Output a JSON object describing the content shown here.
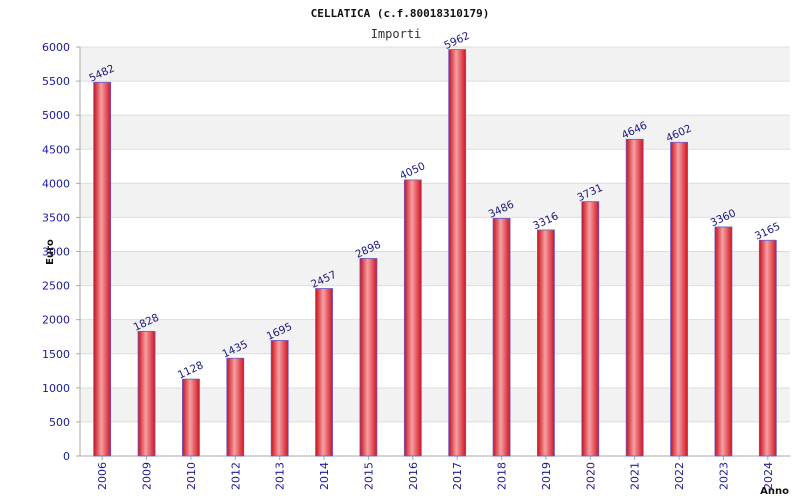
{
  "chart_data": {
    "type": "bar",
    "title": "CELLATICA (c.f.80018310179)",
    "subtitle": "Importi",
    "xlabel": "Anno",
    "ylabel": "Euro",
    "ylim": [
      0,
      6000
    ],
    "ytick_step": 500,
    "yticks": [
      "0",
      "500",
      "1000",
      "1500",
      "2000",
      "2500",
      "3000",
      "3500",
      "4000",
      "4500",
      "5000",
      "5500",
      "6000"
    ],
    "categories": [
      "2006",
      "2009",
      "2010",
      "2012",
      "2013",
      "2014",
      "2015",
      "2016",
      "2017",
      "2018",
      "2019",
      "2020",
      "2021",
      "2022",
      "2023",
      "2024"
    ],
    "values": [
      5482,
      1828,
      1128,
      1435,
      1695,
      2457,
      2898,
      4050,
      5962,
      3486,
      3316,
      3731,
      4646,
      4602,
      3360,
      3165
    ],
    "data_labels": [
      "5482",
      "1828",
      "1128",
      "1435",
      "1695",
      "2457",
      "2898",
      "4050",
      "5962",
      "3486",
      "3316",
      "3731",
      "4646",
      "4602",
      "3360",
      "3165"
    ],
    "grid": true,
    "colors": {
      "bar_main": "#e8202a",
      "bar_highlight": "#f6a0a4",
      "bar_edge": "#6a5acd",
      "grid_band": "#f2f2f2",
      "grid_line": "#dddddd",
      "axis": "#aaaaaa",
      "label_color": "#1a1a80"
    }
  }
}
